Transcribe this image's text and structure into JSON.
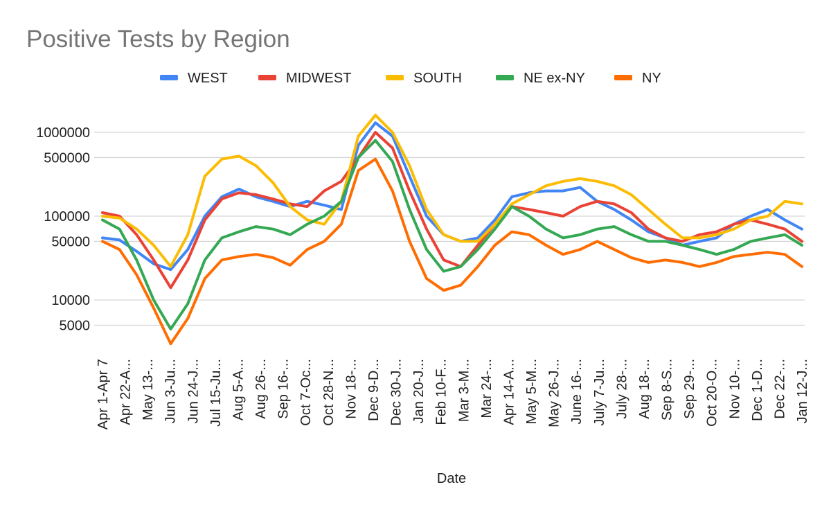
{
  "chart_data": {
    "type": "line",
    "title": "Positive Tests by Region",
    "xlabel": "Date",
    "ylabel": "",
    "yscale": "log",
    "ylim": [
      3000,
      1500000
    ],
    "legend_position": "top",
    "grid": true,
    "y_ticks": [
      {
        "value": 1000000,
        "label": "1000000"
      },
      {
        "value": 500000,
        "label": "500000"
      },
      {
        "value": 100000,
        "label": "100000"
      },
      {
        "value": 50000,
        "label": "50000"
      },
      {
        "value": 10000,
        "label": "10000"
      },
      {
        "value": 5000,
        "label": "5000"
      }
    ],
    "x_count": 42,
    "x_ticks": [
      {
        "index": 0,
        "label": "Apr 1-Apr 7"
      },
      {
        "index": 1,
        "label": "Apr 22-A..."
      },
      {
        "index": 2,
        "label": "May 13-..."
      },
      {
        "index": 3,
        "label": "Jun 3-Ju..."
      },
      {
        "index": 4,
        "label": "Jun 24-J..."
      },
      {
        "index": 5,
        "label": "Jul 15-Ju..."
      },
      {
        "index": 6,
        "label": "Aug 5-A..."
      },
      {
        "index": 7,
        "label": "Aug 26-..."
      },
      {
        "index": 8,
        "label": "Sep 16-..."
      },
      {
        "index": 9,
        "label": "Oct 7-Oc..."
      },
      {
        "index": 10,
        "label": "Oct 28-N..."
      },
      {
        "index": 11,
        "label": "Nov 18-..."
      },
      {
        "index": 12,
        "label": "Dec 9-D..."
      },
      {
        "index": 13,
        "label": "Dec 30-J..."
      },
      {
        "index": 14,
        "label": "Jan 20-J..."
      },
      {
        "index": 15,
        "label": "Feb 10-F..."
      },
      {
        "index": 16,
        "label": "Mar 3-M..."
      },
      {
        "index": 17,
        "label": "Mar 24-..."
      },
      {
        "index": 18,
        "label": "Apr 14-A..."
      },
      {
        "index": 19,
        "label": "May 5-M..."
      },
      {
        "index": 20,
        "label": "May 26-J..."
      },
      {
        "index": 21,
        "label": "June 16-..."
      },
      {
        "index": 22,
        "label": "July 7-Ju..."
      },
      {
        "index": 23,
        "label": "July 28-..."
      },
      {
        "index": 24,
        "label": "Aug 18-..."
      },
      {
        "index": 25,
        "label": "Sep 8-S..."
      },
      {
        "index": 26,
        "label": "Sep 29-..."
      },
      {
        "index": 27,
        "label": "Oct 20-O..."
      },
      {
        "index": 28,
        "label": "Nov 10-..."
      },
      {
        "index": 29,
        "label": "Dec 1-D..."
      },
      {
        "index": 30,
        "label": "Dec 22-..."
      },
      {
        "index": 31,
        "label": "Jan 12-J..."
      }
    ],
    "series": [
      {
        "name": "WEST",
        "color": "#4285f4",
        "values": [
          55000,
          52000,
          38000,
          27000,
          23000,
          40000,
          100000,
          170000,
          210000,
          170000,
          150000,
          130000,
          150000,
          135000,
          120000,
          700000,
          1300000,
          900000,
          300000,
          100000,
          60000,
          50000,
          55000,
          90000,
          170000,
          190000,
          200000,
          200000,
          220000,
          150000,
          120000,
          90000,
          65000,
          55000,
          45000,
          50000,
          55000,
          80000,
          100000,
          120000,
          90000,
          70000
        ]
      },
      {
        "name": "MIDWEST",
        "color": "#ea4335",
        "values": [
          110000,
          100000,
          60000,
          30000,
          14000,
          30000,
          90000,
          160000,
          190000,
          180000,
          160000,
          140000,
          130000,
          200000,
          260000,
          500000,
          1000000,
          650000,
          200000,
          70000,
          30000,
          25000,
          45000,
          80000,
          130000,
          120000,
          110000,
          100000,
          130000,
          150000,
          140000,
          110000,
          70000,
          55000,
          50000,
          60000,
          65000,
          80000,
          90000,
          80000,
          70000,
          50000
        ]
      },
      {
        "name": "SOUTH",
        "color": "#fbbc04",
        "values": [
          100000,
          95000,
          70000,
          45000,
          25000,
          60000,
          300000,
          480000,
          520000,
          400000,
          250000,
          130000,
          90000,
          80000,
          150000,
          900000,
          1600000,
          1000000,
          400000,
          120000,
          60000,
          50000,
          50000,
          80000,
          140000,
          180000,
          230000,
          260000,
          280000,
          260000,
          230000,
          180000,
          120000,
          80000,
          55000,
          55000,
          60000,
          70000,
          90000,
          100000,
          150000,
          140000
        ]
      },
      {
        "name": "NE ex-NY",
        "color": "#34a853",
        "values": [
          90000,
          70000,
          30000,
          10000,
          4500,
          9000,
          30000,
          55000,
          65000,
          75000,
          70000,
          60000,
          80000,
          100000,
          150000,
          500000,
          800000,
          450000,
          120000,
          40000,
          22000,
          25000,
          40000,
          70000,
          130000,
          100000,
          70000,
          55000,
          60000,
          70000,
          75000,
          60000,
          50000,
          50000,
          45000,
          40000,
          35000,
          40000,
          50000,
          55000,
          60000,
          45000
        ]
      },
      {
        "name": "NY",
        "color": "#ff6d01",
        "values": [
          50000,
          40000,
          20000,
          8000,
          3000,
          6000,
          18000,
          30000,
          33000,
          35000,
          32000,
          26000,
          40000,
          50000,
          80000,
          350000,
          480000,
          200000,
          50000,
          18000,
          13000,
          15000,
          25000,
          45000,
          65000,
          60000,
          45000,
          35000,
          40000,
          50000,
          40000,
          32000,
          28000,
          30000,
          28000,
          25000,
          28000,
          33000,
          35000,
          37000,
          35000,
          25000
        ]
      }
    ]
  }
}
